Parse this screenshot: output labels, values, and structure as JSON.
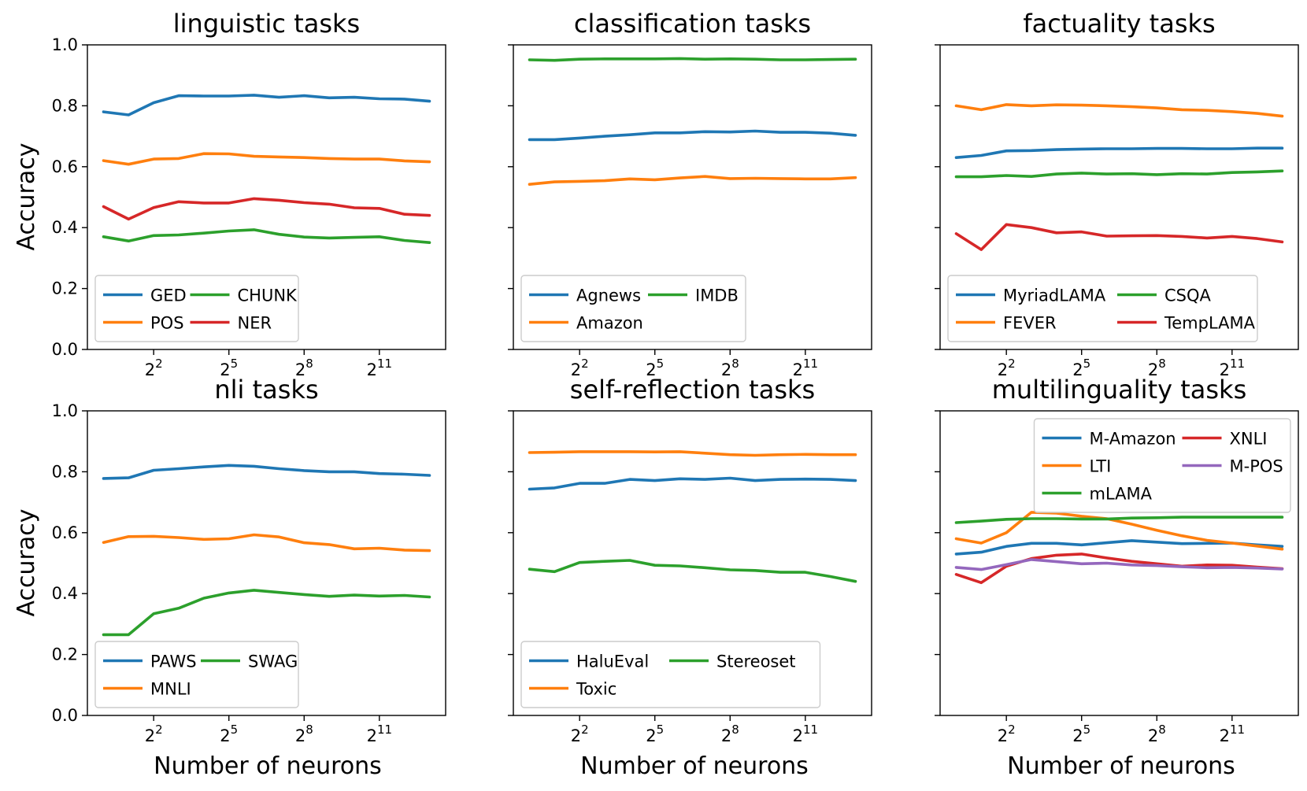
{
  "figure": {
    "ylabel": "Accuracy",
    "xlabel": "Number of neurons"
  },
  "chart_data": [
    {
      "type": "line",
      "title": "linguistic tasks",
      "xlabel": "",
      "ylabel": "Accuracy",
      "ylim": [
        0,
        1
      ],
      "yticks": [
        "0.0",
        "0.2",
        "0.4",
        "0.6",
        "0.8",
        "1.0"
      ],
      "x_scale": "log2",
      "x": [
        1,
        2,
        4,
        8,
        16,
        32,
        64,
        128,
        256,
        512,
        1024,
        2048,
        4096,
        8192
      ],
      "xticks": [
        {
          "base": "2",
          "exp": "2"
        },
        {
          "base": "2",
          "exp": "5"
        },
        {
          "base": "2",
          "exp": "8"
        },
        {
          "base": "2",
          "exp": "11"
        }
      ],
      "legend_position": "lower-left",
      "legend_columns": 2,
      "series": [
        {
          "name": "GED",
          "color": "#1f77b4",
          "values": [
            0.78,
            0.77,
            0.81,
            0.833,
            0.832,
            0.832,
            0.835,
            0.828,
            0.833,
            0.826,
            0.828,
            0.823,
            0.822,
            0.815
          ]
        },
        {
          "name": "CHUNK",
          "color": "#2ca02c",
          "values": [
            0.37,
            0.356,
            0.374,
            0.376,
            0.382,
            0.389,
            0.393,
            0.378,
            0.369,
            0.366,
            0.368,
            0.37,
            0.358,
            0.351
          ]
        },
        {
          "name": "POS",
          "color": "#ff7f0e",
          "values": [
            0.62,
            0.608,
            0.625,
            0.627,
            0.643,
            0.642,
            0.634,
            0.632,
            0.63,
            0.627,
            0.625,
            0.625,
            0.619,
            0.616
          ]
        },
        {
          "name": "NER",
          "color": "#d62728",
          "values": [
            0.469,
            0.428,
            0.466,
            0.485,
            0.481,
            0.481,
            0.495,
            0.49,
            0.482,
            0.477,
            0.465,
            0.463,
            0.444,
            0.44
          ]
        }
      ]
    },
    {
      "type": "line",
      "title": "classification tasks",
      "xlabel": "",
      "ylabel": "",
      "ylim": [
        0,
        1
      ],
      "yticks": [],
      "x_scale": "log2",
      "x": [
        1,
        2,
        4,
        8,
        16,
        32,
        64,
        128,
        256,
        512,
        1024,
        2048,
        4096,
        8192
      ],
      "xticks": [
        {
          "base": "2",
          "exp": "2"
        },
        {
          "base": "2",
          "exp": "5"
        },
        {
          "base": "2",
          "exp": "8"
        },
        {
          "base": "2",
          "exp": "11"
        }
      ],
      "legend_position": "lower-left",
      "legend_columns": 2,
      "series": [
        {
          "name": "Agnews",
          "color": "#1f77b4",
          "values": [
            0.689,
            0.689,
            0.694,
            0.7,
            0.705,
            0.711,
            0.711,
            0.715,
            0.714,
            0.717,
            0.713,
            0.713,
            0.71,
            0.703
          ]
        },
        {
          "name": "IMDB",
          "color": "#2ca02c",
          "values": [
            0.951,
            0.949,
            0.953,
            0.954,
            0.954,
            0.954,
            0.955,
            0.953,
            0.954,
            0.953,
            0.951,
            0.951,
            0.952,
            0.953
          ]
        },
        {
          "name": "Amazon",
          "color": "#ff7f0e",
          "values": [
            0.542,
            0.55,
            0.552,
            0.554,
            0.56,
            0.557,
            0.563,
            0.568,
            0.561,
            0.562,
            0.561,
            0.56,
            0.56,
            0.564
          ]
        }
      ]
    },
    {
      "type": "line",
      "title": "factuality tasks",
      "xlabel": "",
      "ylabel": "",
      "ylim": [
        0,
        1
      ],
      "yticks": [],
      "x_scale": "log2",
      "x": [
        1,
        2,
        4,
        8,
        16,
        32,
        64,
        128,
        256,
        512,
        1024,
        2048,
        4096,
        8192
      ],
      "xticks": [
        {
          "base": "2",
          "exp": "2"
        },
        {
          "base": "2",
          "exp": "5"
        },
        {
          "base": "2",
          "exp": "8"
        },
        {
          "base": "2",
          "exp": "11"
        }
      ],
      "legend_position": "lower-left",
      "legend_columns": 2,
      "series": [
        {
          "name": "MyriadLAMA",
          "color": "#1f77b4",
          "values": [
            0.63,
            0.637,
            0.652,
            0.653,
            0.656,
            0.658,
            0.659,
            0.659,
            0.66,
            0.66,
            0.659,
            0.659,
            0.661,
            0.661
          ]
        },
        {
          "name": "CSQA",
          "color": "#2ca02c",
          "values": [
            0.567,
            0.567,
            0.571,
            0.568,
            0.576,
            0.579,
            0.576,
            0.577,
            0.574,
            0.577,
            0.576,
            0.581,
            0.583,
            0.586
          ]
        },
        {
          "name": "FEVER",
          "color": "#ff7f0e",
          "values": [
            0.8,
            0.787,
            0.804,
            0.8,
            0.803,
            0.802,
            0.8,
            0.797,
            0.793,
            0.787,
            0.785,
            0.781,
            0.775,
            0.766
          ]
        },
        {
          "name": "TempLAMA",
          "color": "#d62728",
          "values": [
            0.38,
            0.328,
            0.41,
            0.4,
            0.383,
            0.386,
            0.372,
            0.373,
            0.374,
            0.371,
            0.366,
            0.371,
            0.364,
            0.353
          ]
        }
      ]
    },
    {
      "type": "line",
      "title": "nli tasks",
      "xlabel": "Number of neurons",
      "ylabel": "Accuracy",
      "ylim": [
        0,
        1
      ],
      "yticks": [
        "0.0",
        "0.2",
        "0.4",
        "0.6",
        "0.8",
        "1.0"
      ],
      "x_scale": "log2",
      "x": [
        1,
        2,
        4,
        8,
        16,
        32,
        64,
        128,
        256,
        512,
        1024,
        2048,
        4096,
        8192
      ],
      "xticks": [
        {
          "base": "2",
          "exp": "2"
        },
        {
          "base": "2",
          "exp": "5"
        },
        {
          "base": "2",
          "exp": "8"
        },
        {
          "base": "2",
          "exp": "11"
        }
      ],
      "legend_position": "lower-left",
      "legend_columns": 2,
      "series": [
        {
          "name": "PAWS",
          "color": "#1f77b4",
          "values": [
            0.778,
            0.78,
            0.805,
            0.81,
            0.816,
            0.821,
            0.818,
            0.81,
            0.804,
            0.8,
            0.8,
            0.794,
            0.792,
            0.788
          ]
        },
        {
          "name": "SWAG",
          "color": "#2ca02c",
          "values": [
            0.265,
            0.265,
            0.334,
            0.352,
            0.385,
            0.402,
            0.411,
            0.404,
            0.397,
            0.391,
            0.395,
            0.392,
            0.394,
            0.389
          ]
        },
        {
          "name": "MNLI",
          "color": "#ff7f0e",
          "values": [
            0.568,
            0.587,
            0.588,
            0.584,
            0.578,
            0.58,
            0.593,
            0.586,
            0.567,
            0.561,
            0.547,
            0.549,
            0.543,
            0.541
          ]
        }
      ]
    },
    {
      "type": "line",
      "title": "self-reflection tasks",
      "xlabel": "Number of neurons",
      "ylabel": "",
      "ylim": [
        0,
        1
      ],
      "yticks": [],
      "x_scale": "log2",
      "x": [
        1,
        2,
        4,
        8,
        16,
        32,
        64,
        128,
        256,
        512,
        1024,
        2048,
        4096,
        8192
      ],
      "xticks": [
        {
          "base": "2",
          "exp": "2"
        },
        {
          "base": "2",
          "exp": "5"
        },
        {
          "base": "2",
          "exp": "8"
        },
        {
          "base": "2",
          "exp": "11"
        }
      ],
      "legend_position": "lower-left",
      "legend_columns": 2,
      "series": [
        {
          "name": "HaluEval",
          "color": "#1f77b4",
          "values": [
            0.743,
            0.747,
            0.762,
            0.762,
            0.775,
            0.771,
            0.777,
            0.775,
            0.779,
            0.771,
            0.775,
            0.776,
            0.775,
            0.771
          ]
        },
        {
          "name": "Stereoset",
          "color": "#2ca02c",
          "values": [
            0.48,
            0.472,
            0.502,
            0.506,
            0.509,
            0.493,
            0.491,
            0.485,
            0.478,
            0.476,
            0.47,
            0.47,
            0.456,
            0.44
          ]
        },
        {
          "name": "Toxic",
          "color": "#ff7f0e",
          "values": [
            0.863,
            0.864,
            0.866,
            0.866,
            0.866,
            0.865,
            0.866,
            0.861,
            0.856,
            0.854,
            0.856,
            0.857,
            0.856,
            0.856
          ]
        }
      ]
    },
    {
      "type": "line",
      "title": "multilinguality tasks",
      "xlabel": "Number of neurons",
      "ylabel": "",
      "ylim": [
        0,
        1
      ],
      "yticks": [],
      "x_scale": "log2",
      "x": [
        1,
        2,
        4,
        8,
        16,
        32,
        64,
        128,
        256,
        512,
        1024,
        2048,
        4096,
        8192
      ],
      "xticks": [
        {
          "base": "2",
          "exp": "2"
        },
        {
          "base": "2",
          "exp": "5"
        },
        {
          "base": "2",
          "exp": "8"
        },
        {
          "base": "2",
          "exp": "11"
        }
      ],
      "legend_position": "upper-right",
      "legend_columns": 2,
      "series": [
        {
          "name": "M-Amazon",
          "color": "#1f77b4",
          "values": [
            0.53,
            0.536,
            0.555,
            0.565,
            0.565,
            0.56,
            0.567,
            0.574,
            0.569,
            0.564,
            0.565,
            0.566,
            0.56,
            0.555
          ]
        },
        {
          "name": "XNLI",
          "color": "#d62728",
          "values": [
            0.463,
            0.436,
            0.49,
            0.515,
            0.526,
            0.53,
            0.517,
            0.506,
            0.498,
            0.49,
            0.494,
            0.493,
            0.487,
            0.482
          ]
        },
        {
          "name": "LTI",
          "color": "#ff7f0e",
          "values": [
            0.58,
            0.566,
            0.6,
            0.667,
            0.664,
            0.654,
            0.646,
            0.628,
            0.608,
            0.59,
            0.575,
            0.566,
            0.556,
            0.546
          ]
        },
        {
          "name": "M-POS",
          "color": "#9467bd",
          "values": [
            0.486,
            0.479,
            0.495,
            0.512,
            0.505,
            0.498,
            0.5,
            0.494,
            0.492,
            0.488,
            0.485,
            0.486,
            0.484,
            0.481
          ]
        },
        {
          "name": "mLAMA",
          "color": "#2ca02c",
          "values": [
            0.633,
            0.638,
            0.644,
            0.646,
            0.646,
            0.645,
            0.645,
            0.648,
            0.649,
            0.651,
            0.651,
            0.651,
            0.651,
            0.651
          ]
        }
      ]
    }
  ]
}
